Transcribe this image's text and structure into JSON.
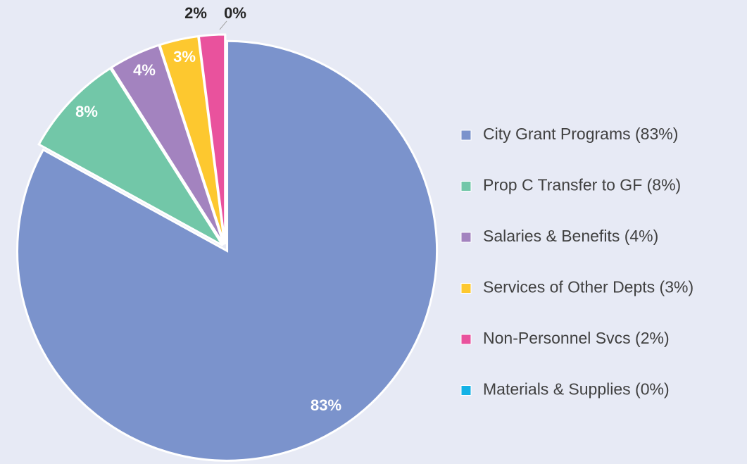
{
  "chart_data": {
    "type": "pie",
    "categories": [
      "City Grant Programs (83%)",
      "Prop C Transfer to GF (8%)",
      "Salaries & Benefits (4%)",
      "Services of Other Depts (3%)",
      "Non-Personnel Svcs (2%)",
      "Materials & Supplies (0%)"
    ],
    "values": [
      83,
      8,
      4,
      3,
      2,
      0
    ],
    "value_labels": [
      "83%",
      "8%",
      "4%",
      "3%",
      "2%",
      "0%"
    ],
    "colors": [
      "#7b93cc",
      "#72c7a8",
      "#a383bf",
      "#fdc82f",
      "#e9529d",
      "#14b2e6"
    ],
    "legend": "right"
  }
}
